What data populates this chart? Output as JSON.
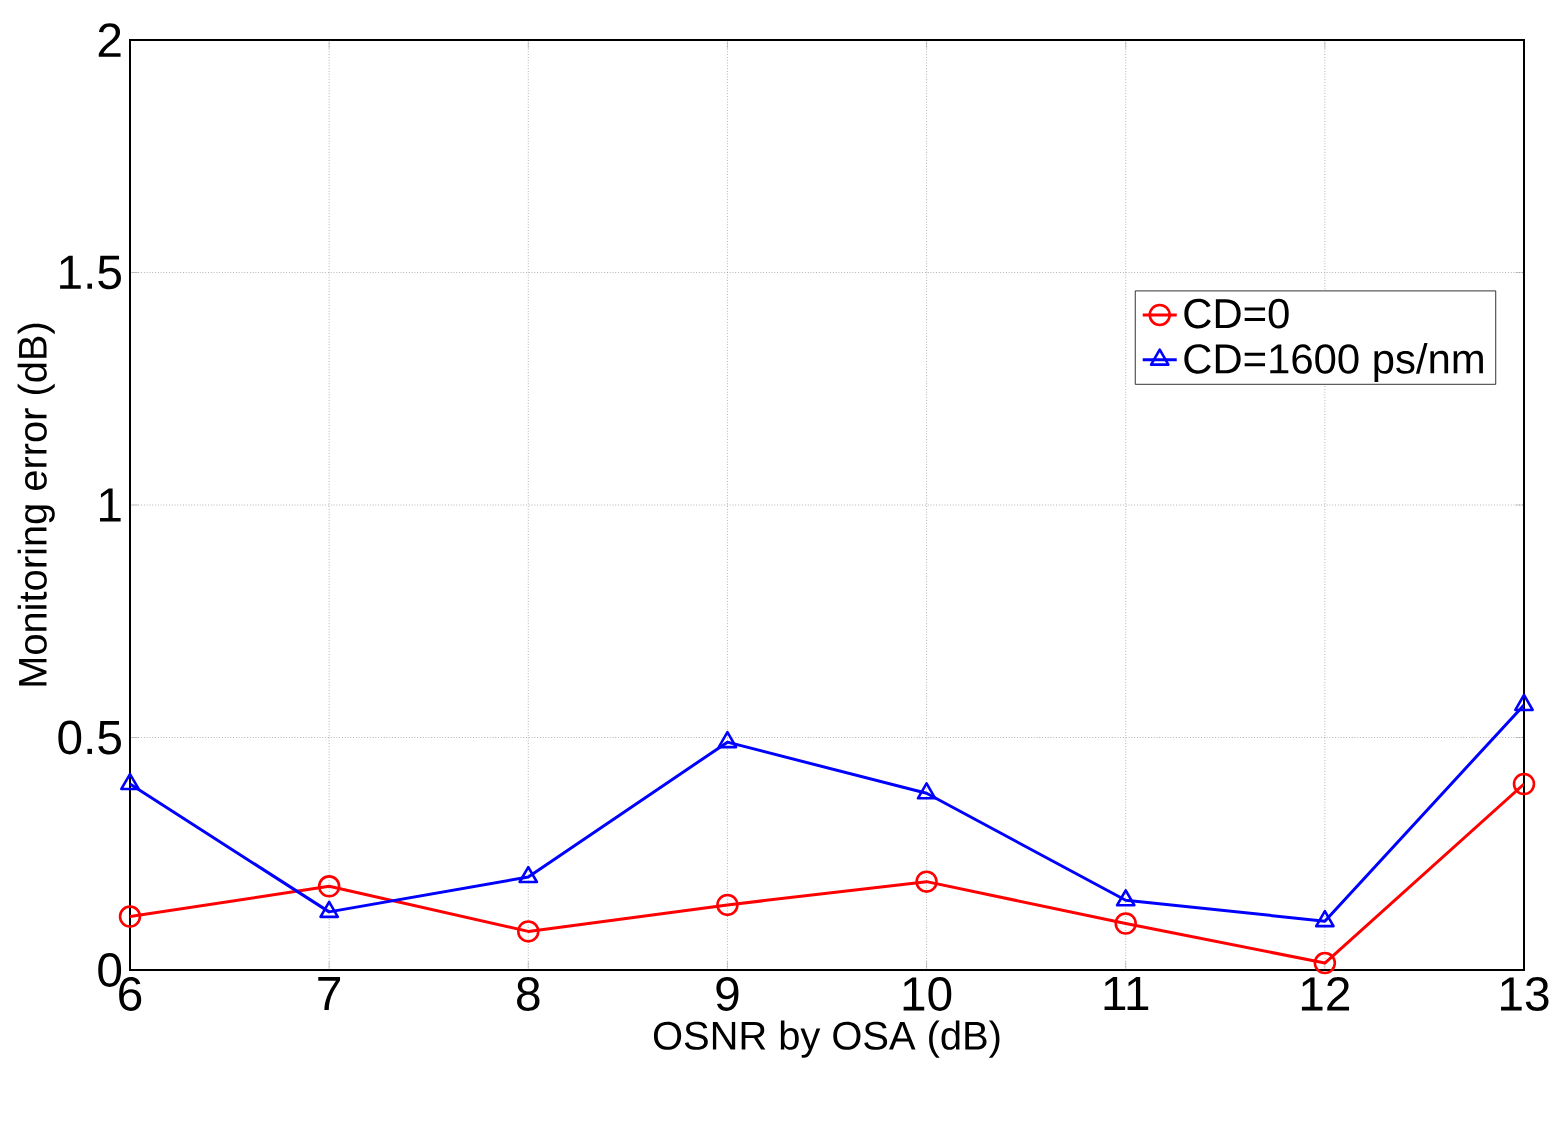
{
  "chart_data": {
    "type": "line",
    "xlabel": "OSNR by OSA (dB)",
    "ylabel": "Monitoring error (dB)",
    "x": [
      6,
      7,
      8,
      9,
      10,
      11,
      12,
      13
    ],
    "series": [
      {
        "name": "CD=0",
        "color": "#ff0000",
        "marker": "circle",
        "values": [
          0.115,
          0.18,
          0.083,
          0.14,
          0.19,
          0.1,
          0.015,
          0.4
        ]
      },
      {
        "name": "CD=1600 ps/nm",
        "color": "#0000ff",
        "marker": "triangle",
        "values": [
          0.4,
          0.125,
          0.2,
          0.49,
          0.38,
          0.15,
          0.105,
          0.57
        ]
      }
    ],
    "xlim": [
      6,
      13
    ],
    "ylim": [
      0,
      2
    ],
    "xticks": [
      6,
      7,
      8,
      9,
      10,
      11,
      12,
      13
    ],
    "yticks": [
      0,
      0.5,
      1,
      1.5,
      2
    ],
    "grid": true,
    "legend": "right",
    "line_style": "solid"
  }
}
